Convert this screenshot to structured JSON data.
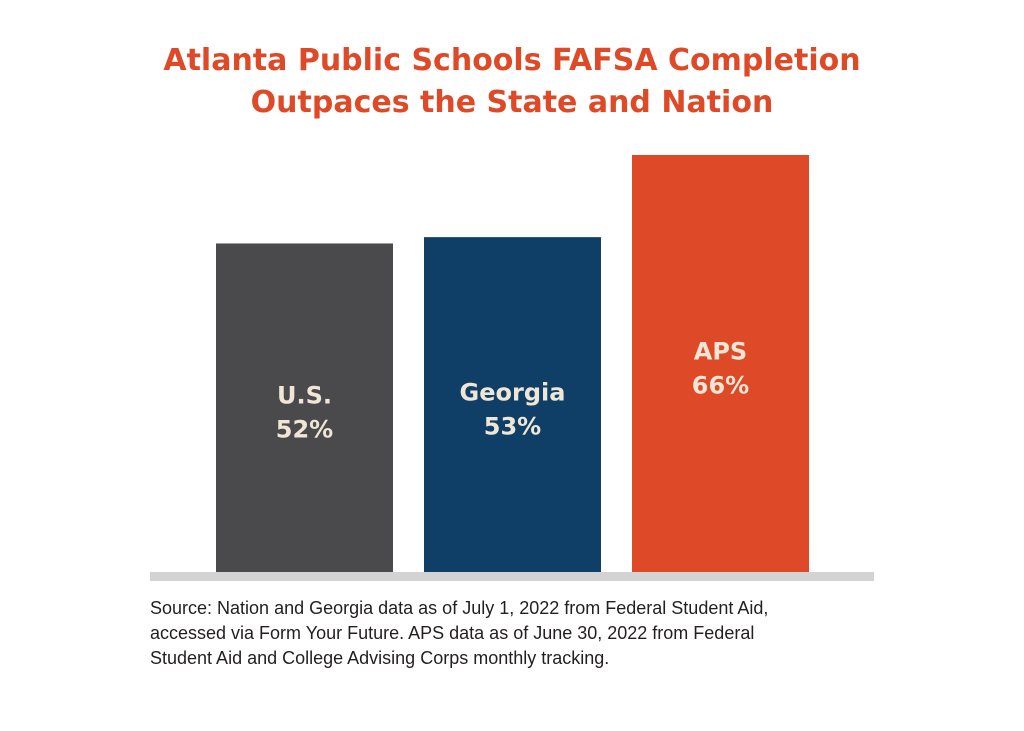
{
  "chart_data": {
    "type": "bar",
    "title_lines": [
      "Atlanta Public Schools FAFSA Completion",
      "Outpaces the State and Nation"
    ],
    "categories": [
      "U.S.",
      "Georgia",
      "APS"
    ],
    "values": [
      52,
      53,
      66
    ],
    "value_labels": [
      "52%",
      "53%",
      "66%"
    ],
    "colors": [
      "#4a4a4c",
      "#0f3f66",
      "#de4a27"
    ],
    "axis_color": "#d3d3d3",
    "label_color": "#efe6d6",
    "xlabel": "",
    "ylabel": "",
    "ylim": [
      0,
      66
    ],
    "grid": false,
    "legend": "none"
  },
  "source_lines": [
    "Source: Nation and Georgia data as of July 1, 2022 from Federal Student Aid,",
    "accessed via Form Your Future. APS data as of June 30, 2022 from Federal",
    "Student Aid and College Advising Corps monthly tracking."
  ]
}
